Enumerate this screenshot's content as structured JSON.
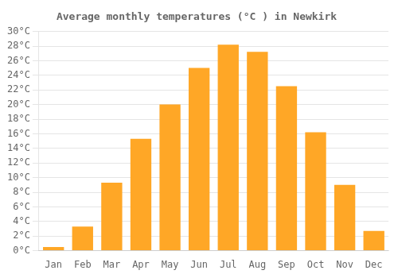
{
  "chart_data": {
    "type": "bar",
    "title": "Average monthly temperatures (°C ) in Newkirk",
    "categories": [
      "Jan",
      "Feb",
      "Mar",
      "Apr",
      "May",
      "Jun",
      "Jul",
      "Aug",
      "Sep",
      "Oct",
      "Nov",
      "Dec"
    ],
    "values": [
      0.5,
      3.3,
      9.3,
      15.3,
      20.0,
      25.0,
      28.2,
      27.2,
      22.5,
      16.2,
      9.0,
      2.7
    ],
    "color": "#FFA726",
    "ylim": [
      0,
      30
    ],
    "yticks": [
      {
        "value": 0,
        "label": "0°C"
      },
      {
        "value": 2,
        "label": "2°C"
      },
      {
        "value": 4,
        "label": "4°C"
      },
      {
        "value": 6,
        "label": "6°C"
      },
      {
        "value": 8,
        "label": "8°C"
      },
      {
        "value": 10,
        "label": "10°C"
      },
      {
        "value": 12,
        "label": "12°C"
      },
      {
        "value": 14,
        "label": "14°C"
      },
      {
        "value": 16,
        "label": "16°C"
      },
      {
        "value": 18,
        "label": "18°C"
      },
      {
        "value": 20,
        "label": "20°C"
      },
      {
        "value": 22,
        "label": "22°C"
      },
      {
        "value": 24,
        "label": "24°C"
      },
      {
        "value": 26,
        "label": "26°C"
      },
      {
        "value": 28,
        "label": "28°C"
      },
      {
        "value": 30,
        "label": "30°C"
      }
    ],
    "grid": true
  }
}
